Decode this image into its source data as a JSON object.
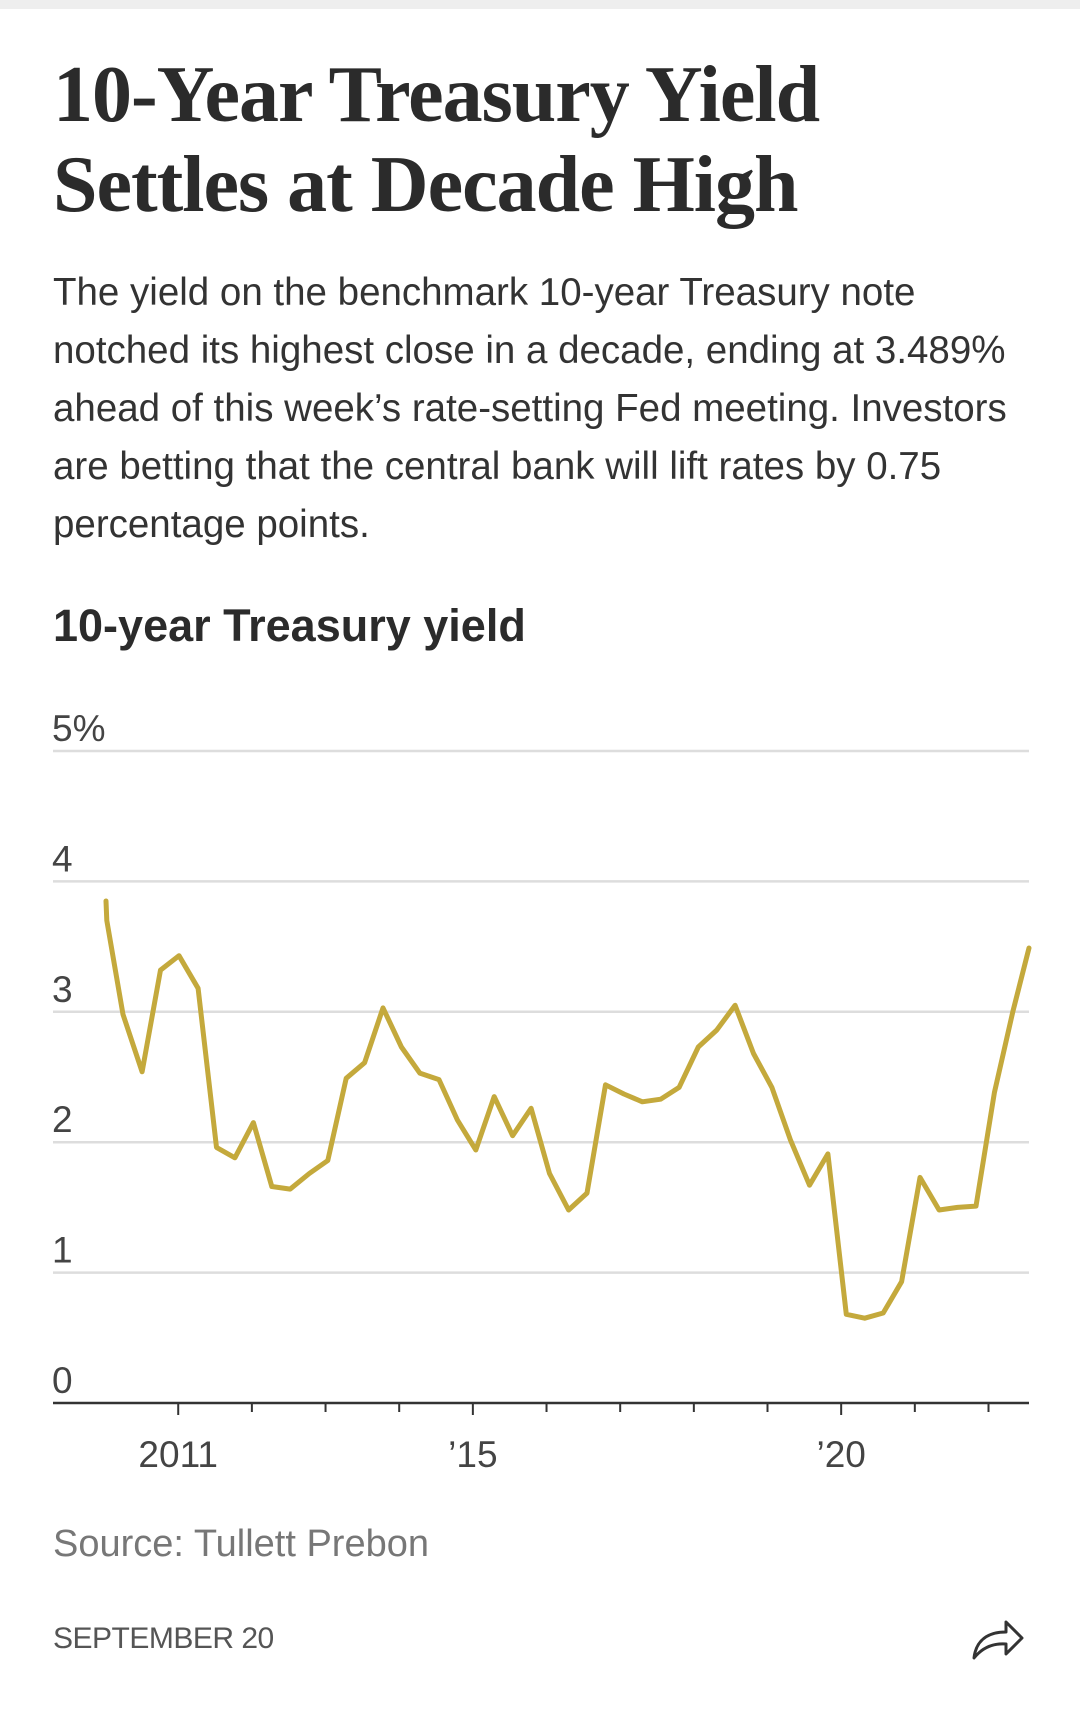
{
  "chart_data": {
    "type": "line",
    "title": "10-Year Treasury Yield Settles at Decade High",
    "description": "The yield on the benchmark 10-year Treasury note notched its highest close in a decade, ending at 3.489% ahead of this week’s rate-setting Fed meeting. Investors are betting that the central bank will lift rates by 0.75 percentage points.",
    "subtitle": "10-year Treasury yield",
    "x": [
      2010.02,
      2010.03,
      2010.25,
      2010.51,
      2010.76,
      2011.01,
      2011.27,
      2011.52,
      2011.77,
      2012.02,
      2012.27,
      2012.52,
      2012.78,
      2013.03,
      2013.28,
      2013.53,
      2013.78,
      2014.03,
      2014.28,
      2014.54,
      2014.79,
      2015.04,
      2015.29,
      2015.54,
      2015.79,
      2016.04,
      2016.3,
      2016.55,
      2016.8,
      2017.05,
      2017.3,
      2017.55,
      2017.8,
      2018.06,
      2018.31,
      2018.56,
      2018.81,
      2019.06,
      2019.31,
      2019.57,
      2019.82,
      2020.07,
      2020.32,
      2020.57,
      2020.82,
      2021.07,
      2021.33,
      2021.58,
      2021.83,
      2022.08,
      2022.33,
      2022.55
    ],
    "values": [
      3.85,
      3.7,
      2.98,
      2.54,
      3.32,
      3.43,
      3.18,
      1.96,
      1.88,
      2.15,
      1.66,
      1.64,
      1.76,
      1.86,
      2.49,
      2.61,
      3.03,
      2.73,
      2.53,
      2.48,
      2.17,
      1.94,
      2.35,
      2.05,
      2.26,
      1.76,
      1.48,
      1.61,
      2.44,
      2.37,
      2.31,
      2.33,
      2.42,
      2.73,
      2.86,
      3.05,
      2.68,
      2.42,
      2.02,
      1.67,
      1.91,
      0.68,
      0.65,
      0.69,
      0.93,
      1.73,
      1.48,
      1.5,
      1.51,
      2.38,
      3.0,
      3.489
    ],
    "color": "#c4a93c",
    "xlim": [
      2009.3,
      2022.55
    ],
    "xticks": [
      2011,
      {
        "value": 2015,
        "label": "’15"
      },
      {
        "value": 2020,
        "label": "’20"
      }
    ],
    "xminorticks": [
      2012,
      2013,
      2014,
      2016,
      2017,
      2018,
      2019,
      2021,
      2022
    ],
    "ylim": [
      0,
      5
    ],
    "yticks": [
      0,
      1,
      2,
      3,
      4,
      {
        "value": 5,
        "label": "5%"
      }
    ],
    "grid": true,
    "source": "Source: Tullett Prebon",
    "date": "SEPTEMBER 20"
  }
}
